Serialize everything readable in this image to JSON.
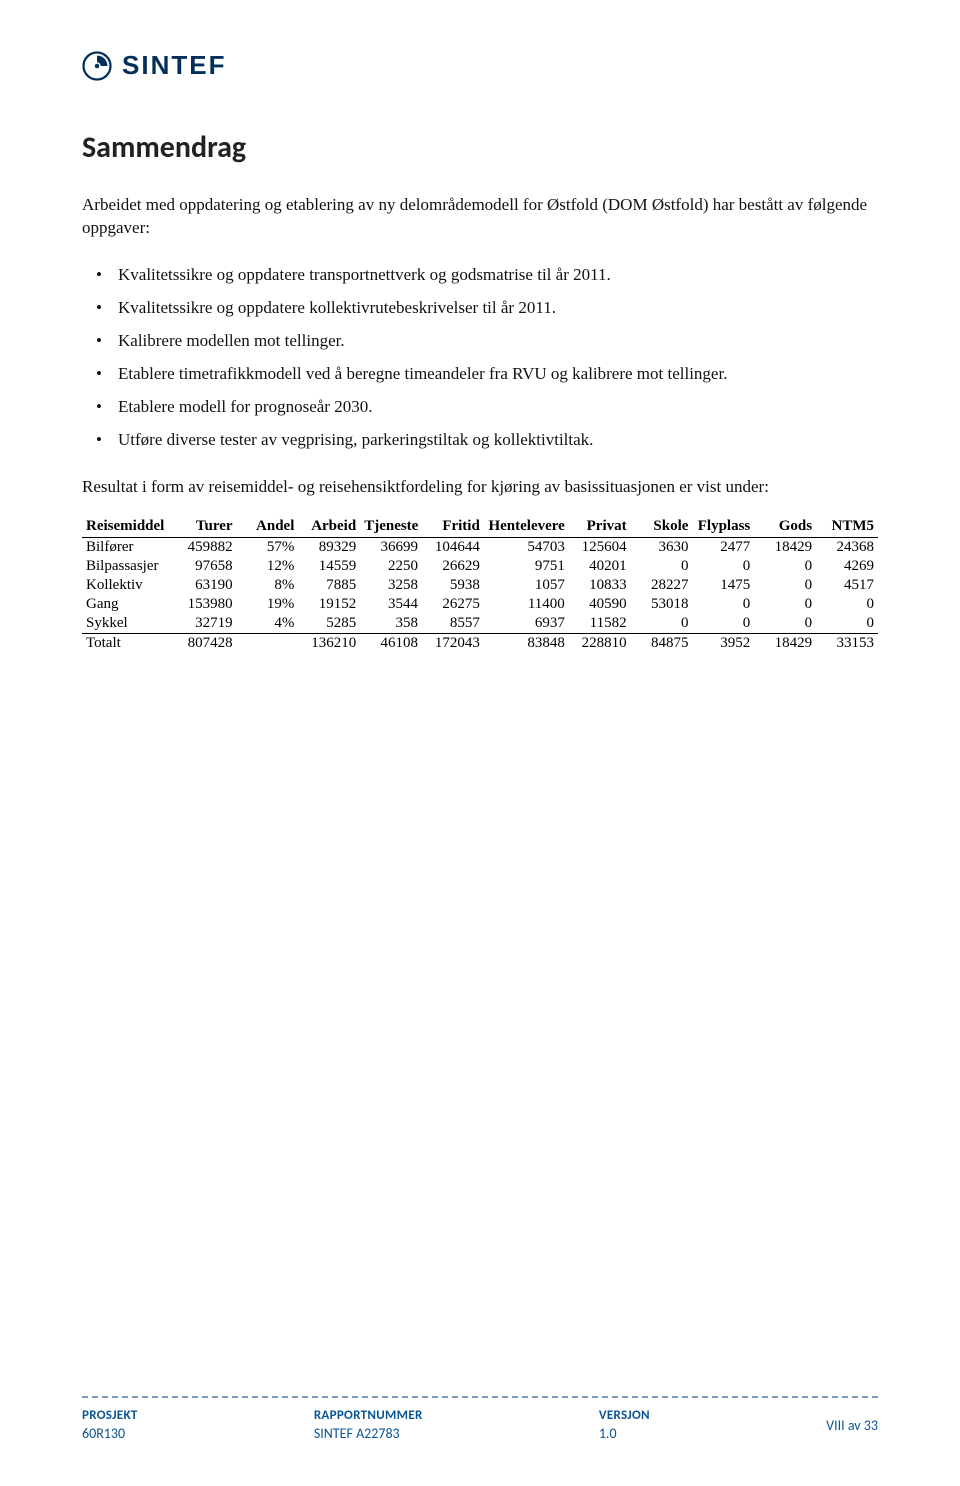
{
  "logo": {
    "text": "SINTEF",
    "color": "#03305a"
  },
  "section_title": "Sammendrag",
  "intro": "Arbeidet med oppdatering og etablering av ny delområdemodell for Østfold (DOM Østfold) har bestått av følgende oppgaver:",
  "bullets": [
    "Kvalitetssikre og oppdatere transportnettverk og godsmatrise til år 2011.",
    "Kvalitetssikre og oppdatere kollektivrutebeskrivelser til år 2011.",
    "Kalibrere modellen mot tellinger.",
    "Etablere timetrafikkmodell ved å beregne timeandeler fra RVU og kalibrere mot tellinger.",
    "Etablere modell for prognoseår 2030.",
    "Utføre diverse tester av vegprising, parkeringstiltak og kollektivtiltak."
  ],
  "result_intro": "Resultat i form av reisemiddel- og reisehensiktfordeling for kjøring av basissituasjonen er vist under:",
  "table": {
    "type": "table",
    "columns": [
      "Reisemiddel",
      "Turer",
      "Andel",
      "Arbeid",
      "Tjeneste",
      "Fritid",
      "Hentelevere",
      "Privat",
      "Skole",
      "Flyplass",
      "Gods",
      "NTM5"
    ],
    "col_align": [
      "left",
      "right",
      "right",
      "right",
      "right",
      "right",
      "right",
      "right",
      "right",
      "right",
      "right",
      "right"
    ],
    "rows": [
      [
        "Bilfører",
        "459882",
        "57%",
        "89329",
        "36699",
        "104644",
        "54703",
        "125604",
        "3630",
        "2477",
        "18429",
        "24368"
      ],
      [
        "Bilpassasjer",
        "97658",
        "12%",
        "14559",
        "2250",
        "26629",
        "9751",
        "40201",
        "0",
        "0",
        "0",
        "4269"
      ],
      [
        "Kollektiv",
        "63190",
        "8%",
        "7885",
        "3258",
        "5938",
        "1057",
        "10833",
        "28227",
        "1475",
        "0",
        "4517"
      ],
      [
        "Gang",
        "153980",
        "19%",
        "19152",
        "3544",
        "26275",
        "11400",
        "40590",
        "53018",
        "0",
        "0",
        "0"
      ],
      [
        "Sykkel",
        "32719",
        "4%",
        "5285",
        "358",
        "8557",
        "6937",
        "11582",
        "0",
        "0",
        "0",
        "0"
      ]
    ],
    "total_row": [
      "Totalt",
      "807428",
      "",
      "136210",
      "46108",
      "172043",
      "83848",
      "228810",
      "84875",
      "3952",
      "18429",
      "33153"
    ],
    "border_color": "#000000",
    "header_fontweight": 700,
    "fontsize": 15
  },
  "footer": {
    "separator_color": "#7a99b8",
    "cols": [
      {
        "label": "PROSJEKT",
        "value": "60R130"
      },
      {
        "label": "RAPPORTNUMMER",
        "value": "SINTEF A22783"
      },
      {
        "label": "VERSJON",
        "value": "1.0"
      }
    ],
    "page": "VIII av 33",
    "text_color": "#0a5596"
  }
}
